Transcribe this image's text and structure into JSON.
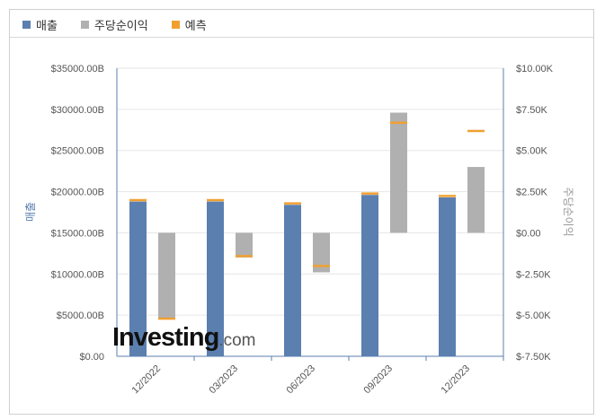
{
  "legend": [
    {
      "label": "매출",
      "color": "#5b7faf"
    },
    {
      "label": "주당순이익",
      "color": "#b0b0b0"
    },
    {
      "label": "예측",
      "color": "#f0a030"
    }
  ],
  "watermark": {
    "main": "Investing",
    "suffix": ".com"
  },
  "chart_data": {
    "type": "bar",
    "categories": [
      "12/2022",
      "03/2023",
      "06/2023",
      "09/2023",
      "12/2023"
    ],
    "left_axis": {
      "label": "매출",
      "ylim": [
        0,
        35000
      ],
      "ticks": [
        "$0.00",
        "$5000.00B",
        "$10000.00B",
        "$15000.00B",
        "$20000.00B",
        "$25000.00B",
        "$30000.00B",
        "$35000.00B"
      ]
    },
    "right_axis": {
      "label": "주당순이익",
      "ylim": [
        -7.5,
        10.0
      ],
      "ticks": [
        "$-7.50K",
        "$-5.00K",
        "$-2.50K",
        "$0.00",
        "$2.50K",
        "$5.00K",
        "$7.50K",
        "$10.00K"
      ]
    },
    "series": [
      {
        "name": "매출",
        "axis": "left",
        "color": "#5b7faf",
        "values": [
          18800,
          18800,
          18400,
          19600,
          19300
        ],
        "forecast": [
          19000,
          19000,
          18600,
          19800,
          19500
        ]
      },
      {
        "name": "주당순이익",
        "axis": "right",
        "color": "#b0b0b0",
        "values": [
          -5.2,
          -1.5,
          -2.4,
          7.3,
          4.0
        ],
        "forecast": [
          -5.2,
          -1.4,
          -2.0,
          6.7,
          6.2
        ]
      }
    ],
    "forecast_color": "#f0a030",
    "grid": true
  }
}
